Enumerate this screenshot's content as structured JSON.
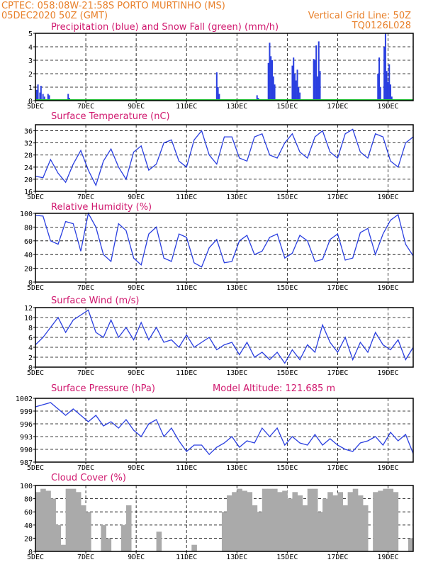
{
  "header": {
    "line1_left": "CPTEC:  058:08W-21:58S  PORTO MURTINHO (MS)",
    "line2_left": "05DEC2020 50Z (GMT)",
    "line2_right": "Vertical Grid Line: 50Z",
    "line3_right": "TQ0126L028"
  },
  "colors": {
    "header": "#e8802a",
    "title": "#d0186e",
    "series": "#2a3fe0",
    "snow": "#22bb33",
    "cloud": "#aaaaaa"
  },
  "x_labels": [
    "5DEC",
    "7DEC",
    "9DEC",
    "11DEC",
    "13DEC",
    "15DEC",
    "17DEC",
    "19DEC"
  ],
  "x_range": [
    5,
    20
  ],
  "chart_data": [
    {
      "type": "bar",
      "title": "Precipitation (blue) and Snow Fall (green) (mm/h)",
      "ylim": [
        0,
        5
      ],
      "yticks": [
        0,
        1,
        2,
        3,
        4,
        5
      ],
      "series": [
        {
          "name": "Precipitation",
          "x": [
            5.05,
            5.1,
            5.18,
            5.22,
            5.3,
            5.36,
            5.5,
            5.55,
            6.3,
            6.35,
            12.2,
            12.25,
            12.3,
            13.8,
            13.85,
            14.25,
            14.3,
            14.35,
            14.4,
            14.45,
            14.5,
            15.2,
            15.25,
            15.3,
            15.35,
            15.4,
            15.45,
            15.5,
            16.05,
            16.1,
            16.15,
            16.2,
            16.25,
            16.3,
            18.6,
            18.65,
            18.7,
            18.85,
            18.9,
            18.95,
            19.0,
            19.05,
            19.1,
            19.15
          ],
          "values": [
            0.8,
            1.2,
            0.6,
            1.1,
            0.5,
            0.3,
            0.5,
            0.4,
            0.5,
            0.2,
            2.1,
            1.0,
            0.5,
            0.4,
            0.2,
            2.8,
            4.3,
            3.3,
            3.0,
            1.8,
            1.2,
            2.6,
            3.2,
            2.0,
            1.5,
            2.3,
            1.0,
            0.6,
            3.1,
            3.0,
            4.1,
            1.8,
            4.4,
            2.2,
            2.0,
            3.2,
            1.0,
            4.0,
            5.0,
            2.2,
            1.4,
            2.7,
            1.2,
            0.3
          ]
        },
        {
          "name": "Snow Fall",
          "x": [
            5,
            20
          ],
          "values": [
            0,
            0
          ]
        }
      ]
    },
    {
      "type": "line",
      "title": "Surface Temperature (nC)",
      "ylim": [
        16,
        38
      ],
      "yticks": [
        16,
        20,
        24,
        28,
        32,
        36
      ],
      "x": [
        5,
        5.3,
        5.6,
        5.9,
        6.2,
        6.5,
        6.8,
        7.1,
        7.4,
        7.7,
        8.0,
        8.3,
        8.6,
        8.9,
        9.2,
        9.5,
        9.8,
        10.1,
        10.4,
        10.7,
        11.0,
        11.3,
        11.6,
        11.9,
        12.2,
        12.5,
        12.8,
        13.1,
        13.4,
        13.7,
        14.0,
        14.3,
        14.6,
        14.9,
        15.2,
        15.5,
        15.8,
        16.1,
        16.4,
        16.7,
        17.0,
        17.3,
        17.6,
        17.9,
        18.2,
        18.5,
        18.8,
        19.1,
        19.4,
        19.7,
        20.0
      ],
      "values": [
        21,
        20.5,
        26.5,
        22,
        19,
        25,
        29.5,
        23,
        18,
        26,
        30,
        24,
        20,
        29,
        31,
        23,
        25,
        32,
        33,
        26,
        24,
        33,
        36,
        28,
        25,
        34,
        34,
        27,
        26,
        34,
        35,
        28,
        27,
        32,
        35,
        29,
        27,
        34,
        36,
        29,
        27,
        35,
        36.5,
        29,
        27,
        35,
        34,
        26,
        24,
        32,
        34
      ]
    },
    {
      "type": "line",
      "title": "Relative Humidity (%)",
      "ylim": [
        0,
        100
      ],
      "yticks": [
        0,
        20,
        40,
        60,
        80,
        100
      ],
      "x": [
        5,
        5.3,
        5.6,
        5.9,
        6.2,
        6.5,
        6.8,
        7.1,
        7.4,
        7.7,
        8.0,
        8.3,
        8.6,
        8.9,
        9.2,
        9.5,
        9.8,
        10.1,
        10.4,
        10.7,
        11.0,
        11.3,
        11.6,
        11.9,
        12.2,
        12.5,
        12.8,
        13.1,
        13.4,
        13.7,
        14.0,
        14.3,
        14.6,
        14.9,
        15.2,
        15.5,
        15.8,
        16.1,
        16.4,
        16.7,
        17.0,
        17.3,
        17.6,
        17.9,
        18.2,
        18.5,
        18.8,
        19.1,
        19.4,
        19.7,
        20.0
      ],
      "values": [
        97,
        96,
        60,
        55,
        88,
        85,
        45,
        100,
        80,
        40,
        30,
        85,
        75,
        35,
        25,
        70,
        80,
        35,
        30,
        70,
        65,
        28,
        22,
        50,
        62,
        28,
        30,
        60,
        68,
        40,
        45,
        65,
        70,
        35,
        42,
        68,
        60,
        30,
        33,
        62,
        70,
        32,
        35,
        72,
        78,
        40,
        70,
        90,
        98,
        55,
        38
      ]
    },
    {
      "type": "line",
      "title": "Surface Wind (m/s)",
      "ylim": [
        0,
        12
      ],
      "yticks": [
        0,
        2,
        4,
        6,
        8,
        10,
        12
      ],
      "x": [
        5,
        5.3,
        5.6,
        5.9,
        6.2,
        6.5,
        6.8,
        7.1,
        7.4,
        7.7,
        8.0,
        8.3,
        8.6,
        8.9,
        9.2,
        9.5,
        9.8,
        10.1,
        10.4,
        10.7,
        11.0,
        11.3,
        11.6,
        11.9,
        12.2,
        12.5,
        12.8,
        13.1,
        13.4,
        13.7,
        14.0,
        14.3,
        14.6,
        14.9,
        15.2,
        15.5,
        15.8,
        16.1,
        16.4,
        16.7,
        17.0,
        17.3,
        17.6,
        17.9,
        18.2,
        18.5,
        18.8,
        19.1,
        19.4,
        19.7,
        20.0
      ],
      "values": [
        4.5,
        6,
        8,
        10,
        7,
        9.5,
        10.5,
        11.5,
        7,
        6,
        9.5,
        6,
        8,
        5.5,
        9,
        5.5,
        8,
        5,
        5.5,
        4,
        6.5,
        4,
        5,
        6,
        3.5,
        4.5,
        5,
        2.5,
        5,
        2,
        3,
        1.5,
        3,
        0.8,
        3.5,
        1.5,
        4.5,
        3,
        8.5,
        5,
        3,
        6,
        1.5,
        5,
        3,
        7,
        4.5,
        3.5,
        5.5,
        1.5,
        4
      ]
    },
    {
      "type": "line",
      "title": "Surface Pressure (hPa)",
      "annotation": "Model Altitude: 121.685 m",
      "ylim": [
        987,
        1002
      ],
      "yticks": [
        987,
        990,
        993,
        996,
        999,
        1002
      ],
      "x": [
        5,
        5.3,
        5.6,
        5.9,
        6.2,
        6.5,
        6.8,
        7.1,
        7.4,
        7.7,
        8.0,
        8.3,
        8.6,
        8.9,
        9.2,
        9.5,
        9.8,
        10.1,
        10.4,
        10.7,
        11.0,
        11.3,
        11.6,
        11.9,
        12.2,
        12.5,
        12.8,
        13.1,
        13.4,
        13.7,
        14.0,
        14.3,
        14.6,
        14.9,
        15.2,
        15.5,
        15.8,
        16.1,
        16.4,
        16.7,
        17.0,
        17.3,
        17.6,
        17.9,
        18.2,
        18.5,
        18.8,
        19.1,
        19.4,
        19.7,
        20.0
      ],
      "values": [
        1000,
        1000.5,
        1001,
        999.5,
        998,
        999.5,
        998,
        996.5,
        998,
        995.5,
        996.5,
        995,
        997,
        994.5,
        993,
        996,
        997,
        993,
        995,
        992,
        989.5,
        991,
        991,
        988.8,
        990.5,
        991.5,
        993,
        990.5,
        992,
        991.5,
        995,
        993,
        995,
        991,
        993,
        991.5,
        991,
        993.5,
        991,
        992.5,
        991,
        990,
        989.5,
        991.5,
        992,
        993,
        991,
        994,
        992,
        993.5,
        989
      ]
    },
    {
      "type": "bar",
      "title": "Cloud Cover (%)",
      "ylim": [
        0,
        100
      ],
      "yticks": [
        0,
        20,
        40,
        60,
        80,
        100
      ],
      "x": [
        5,
        5.2,
        5.4,
        5.6,
        5.8,
        6.0,
        6.2,
        6.4,
        6.6,
        6.8,
        7.0,
        7.2,
        7.4,
        7.6,
        7.8,
        8.0,
        8.2,
        8.4,
        8.6,
        8.8,
        9.0,
        9.2,
        9.4,
        9.6,
        9.8,
        10.0,
        10.2,
        10.4,
        10.6,
        10.8,
        11.0,
        11.2,
        11.4,
        11.6,
        11.8,
        12.0,
        12.2,
        12.4,
        12.6,
        12.8,
        13.0,
        13.2,
        13.4,
        13.6,
        13.8,
        14.0,
        14.2,
        14.4,
        14.6,
        14.8,
        15.0,
        15.2,
        15.4,
        15.6,
        15.8,
        16.0,
        16.2,
        16.4,
        16.6,
        16.8,
        17.0,
        17.2,
        17.4,
        17.6,
        17.8,
        18.0,
        18.2,
        18.4,
        18.6,
        18.8,
        19.0,
        19.2,
        19.4,
        19.6,
        19.8
      ],
      "values": [
        90,
        95,
        92,
        80,
        40,
        10,
        95,
        95,
        90,
        70,
        60,
        0,
        0,
        40,
        20,
        0,
        0,
        40,
        70,
        0,
        0,
        0,
        0,
        0,
        30,
        0,
        0,
        0,
        0,
        0,
        0,
        10,
        0,
        0,
        0,
        0,
        0,
        60,
        85,
        90,
        95,
        92,
        90,
        70,
        60,
        95,
        95,
        95,
        90,
        92,
        80,
        90,
        85,
        70,
        95,
        95,
        60,
        80,
        90,
        85,
        90,
        70,
        90,
        95,
        85,
        70,
        0,
        90,
        92,
        95,
        95,
        90,
        0,
        0,
        20
      ]
    }
  ]
}
